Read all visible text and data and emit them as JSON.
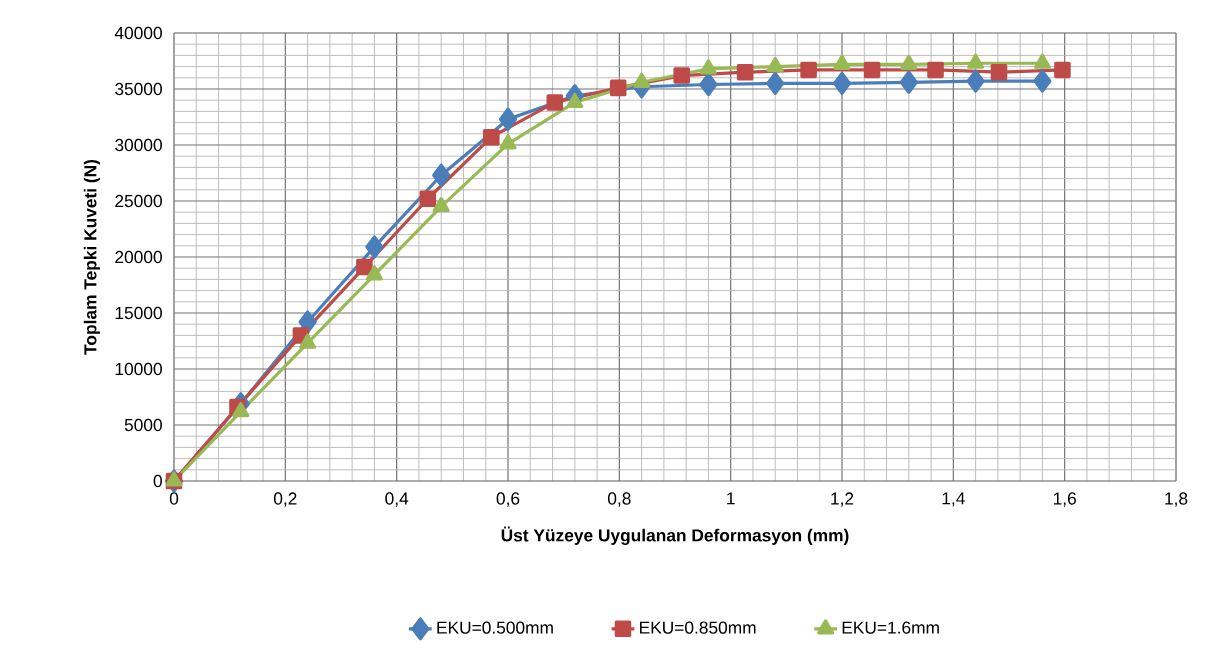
{
  "chart_data": {
    "type": "line",
    "xlabel": "Üst  Yüzeye Uygulanan  Deformasyon (mm)",
    "ylabel": "Toplam Tepki Kuveti (N)",
    "xlim": [
      0,
      1.8
    ],
    "ylim": [
      0,
      40000
    ],
    "xticks": [
      0,
      {
        "value": 0.2,
        "label": "0,2"
      },
      {
        "value": 0.4,
        "label": "0,4"
      },
      {
        "value": 0.6,
        "label": "0,6"
      },
      {
        "value": 0.8,
        "label": "0,8"
      },
      1,
      {
        "value": 1.2,
        "label": "1,2"
      },
      {
        "value": 1.4,
        "label": "1,4"
      },
      {
        "value": 1.6,
        "label": "1,6"
      },
      {
        "value": 1.8,
        "label": "1,8"
      }
    ],
    "yticks": [
      0,
      5000,
      10000,
      15000,
      20000,
      25000,
      30000,
      35000,
      40000
    ],
    "grid": true,
    "legend": "bottom",
    "series": [
      {
        "name": "EKU=0.500mm",
        "color": "#4a7ebb",
        "marker": "diamond",
        "x": [
          0,
          0.12,
          0.24,
          0.36,
          0.48,
          0.6,
          0.72,
          0.84,
          0.96,
          1.08,
          1.2,
          1.32,
          1.44,
          1.56
        ],
        "values": [
          0,
          6900,
          14200,
          20900,
          27300,
          32300,
          34400,
          35200,
          35400,
          35500,
          35500,
          35600,
          35700,
          35700
        ]
      },
      {
        "name": "EKU=0.850mm",
        "color": "#be4b48",
        "marker": "square",
        "x": [
          0,
          0.114,
          0.228,
          0.342,
          0.456,
          0.57,
          0.684,
          0.798,
          0.912,
          1.026,
          1.14,
          1.254,
          1.368,
          1.482,
          1.596
        ],
        "values": [
          0,
          6600,
          13000,
          19100,
          25200,
          30700,
          33800,
          35100,
          36200,
          36500,
          36700,
          36700,
          36700,
          36500,
          36700
        ]
      },
      {
        "name": "EKU=1.6mm",
        "color": "#98b954",
        "marker": "triangle",
        "x": [
          0,
          0.12,
          0.24,
          0.36,
          0.48,
          0.6,
          0.72,
          0.84,
          0.96,
          1.08,
          1.2,
          1.32,
          1.44,
          1.56
        ],
        "values": [
          0,
          6200,
          12300,
          18400,
          24500,
          30100,
          33800,
          35600,
          36800,
          37000,
          37200,
          37200,
          37300,
          37300
        ]
      }
    ]
  }
}
